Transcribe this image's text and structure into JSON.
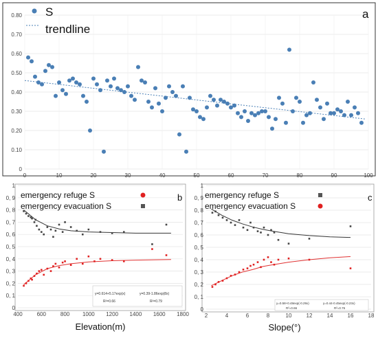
{
  "chart_data": [
    {
      "type": "scatter",
      "panel_label": "a",
      "legend": {
        "series": "S",
        "trend": "trendline"
      },
      "xlim": [
        0,
        100
      ],
      "ylim": [
        0,
        0.8
      ],
      "x_ticks": [
        "0",
        "10",
        "20",
        "30",
        "40",
        "50",
        "60",
        "70",
        "80",
        "90",
        "100"
      ],
      "y_ticks": [
        "0",
        "0.10",
        "0.20",
        "0.30",
        "0.40",
        "0.50",
        "0.60",
        "0.70",
        "0.80"
      ],
      "trend": {
        "x": [
          0,
          99
        ],
        "y": [
          0.46,
          0.26
        ]
      },
      "series": [
        {
          "name": "S",
          "x": [
            1,
            2,
            3,
            4,
            5,
            6,
            7,
            8,
            9,
            10,
            11,
            12,
            13,
            14,
            15,
            16,
            17,
            18,
            19,
            20,
            21,
            22,
            23,
            24,
            25,
            26,
            27,
            28,
            29,
            30,
            31,
            32,
            33,
            34,
            35,
            36,
            37,
            38,
            39,
            40,
            41,
            42,
            43,
            44,
            45,
            46,
            47,
            48,
            49,
            50,
            51,
            52,
            53,
            54,
            55,
            56,
            57,
            58,
            59,
            60,
            61,
            62,
            63,
            64,
            65,
            66,
            67,
            68,
            69,
            70,
            71,
            72,
            73,
            74,
            75,
            76,
            77,
            78,
            79,
            80,
            81,
            82,
            83,
            84,
            85,
            86,
            87,
            88,
            89,
            90,
            91,
            92,
            93,
            94,
            95,
            96,
            97,
            98
          ],
          "y": [
            0.58,
            0.56,
            0.48,
            0.45,
            0.44,
            0.51,
            0.54,
            0.53,
            0.38,
            0.45,
            0.41,
            0.39,
            0.46,
            0.47,
            0.45,
            0.44,
            0.38,
            0.35,
            0.2,
            0.47,
            0.44,
            0.41,
            0.09,
            0.46,
            0.43,
            0.47,
            0.42,
            0.41,
            0.4,
            0.43,
            0.38,
            0.36,
            0.53,
            0.46,
            0.45,
            0.35,
            0.32,
            0.42,
            0.34,
            0.3,
            0.37,
            0.43,
            0.4,
            0.38,
            0.18,
            0.43,
            0.09,
            0.37,
            0.31,
            0.3,
            0.27,
            0.26,
            0.32,
            0.38,
            0.36,
            0.33,
            0.36,
            0.35,
            0.34,
            0.32,
            0.33,
            0.29,
            0.27,
            0.3,
            0.25,
            0.29,
            0.28,
            0.29,
            0.3,
            0.3,
            0.27,
            0.21,
            0.26,
            0.37,
            0.34,
            0.24,
            0.62,
            0.3,
            0.37,
            0.35,
            0.24,
            0.28,
            0.29,
            0.45,
            0.36,
            0.32,
            0.26,
            0.34,
            0.29,
            0.29,
            0.31,
            0.3,
            0.28,
            0.35,
            0.28,
            0.32,
            0.29,
            0.24
          ]
        }
      ]
    },
    {
      "type": "scatter",
      "panel_label": "b",
      "xlabel": "Elevation(m)",
      "xlim": [
        400,
        1800
      ],
      "ylim": [
        0,
        1.0
      ],
      "x_ticks": [
        "400",
        "600",
        "800",
        "1000",
        "1200",
        "1400",
        "1600",
        "1800"
      ],
      "y_ticks": [
        "0",
        "0, 1",
        "0, 2",
        "0, 3",
        "0, 4",
        "0, 5",
        "0, 6",
        "0, 7",
        "0, 8",
        "0, 9",
        "1"
      ],
      "legend": {
        "refuge": "emergency refuge S",
        "evacuation": "emergency evacuation S"
      },
      "equations": [
        "y=0.614+5.17exp(x)",
        "y=0.39-1.86exp(8x)",
        "R²=0.66",
        "R²=0.79"
      ],
      "series": [
        {
          "name": "emergency evacuation S",
          "x": [
            450,
            470,
            490,
            510,
            520,
            540,
            550,
            560,
            580,
            600,
            620,
            650,
            680,
            700,
            720,
            750,
            780,
            800,
            850,
            900,
            950,
            1000,
            1100,
            1200,
            1300,
            1540,
            1660
          ],
          "y": [
            0.79,
            0.77,
            0.75,
            0.74,
            0.73,
            0.7,
            0.72,
            0.67,
            0.64,
            0.62,
            0.6,
            0.66,
            0.64,
            0.58,
            0.63,
            0.68,
            0.62,
            0.7,
            0.66,
            0.63,
            0.6,
            0.64,
            0.62,
            0.61,
            0.62,
            0.52,
            0.68
          ]
        },
        {
          "name": "emergency refuge S",
          "x": [
            450,
            470,
            490,
            510,
            520,
            540,
            560,
            580,
            600,
            620,
            650,
            680,
            700,
            720,
            750,
            780,
            800,
            850,
            900,
            950,
            1000,
            1050,
            1100,
            1200,
            1300,
            1540,
            1660
          ],
          "y": [
            0.18,
            0.2,
            0.22,
            0.24,
            0.23,
            0.26,
            0.28,
            0.3,
            0.31,
            0.27,
            0.32,
            0.3,
            0.34,
            0.36,
            0.33,
            0.37,
            0.38,
            0.35,
            0.4,
            0.36,
            0.42,
            0.38,
            0.4,
            0.39,
            0.38,
            0.48,
            0.43
          ]
        }
      ],
      "fits": [
        {
          "x": [
            450,
            550,
            650,
            750,
            850,
            1000,
            1200,
            1400,
            1700
          ],
          "y": [
            0.8,
            0.72,
            0.67,
            0.645,
            0.63,
            0.62,
            0.615,
            0.61,
            0.61
          ]
        },
        {
          "x": [
            450,
            550,
            650,
            750,
            850,
            1000,
            1200,
            1400,
            1700
          ],
          "y": [
            0.19,
            0.27,
            0.32,
            0.345,
            0.36,
            0.375,
            0.385,
            0.39,
            0.395
          ]
        }
      ]
    },
    {
      "type": "scatter",
      "panel_label": "c",
      "xlabel": "Slope(°)",
      "xlim": [
        2,
        18
      ],
      "ylim": [
        0,
        1.0
      ],
      "x_ticks": [
        "2",
        "4",
        "6",
        "8",
        "10",
        "12",
        "14",
        "16",
        "18"
      ],
      "y_ticks": [
        "0",
        "0, 1",
        "0, 2",
        "0, 3",
        "0, 4",
        "0, 5",
        "0, 6",
        "0, 7",
        "0, 8",
        "0, 9",
        "1"
      ],
      "legend": {
        "refuge": "emergency refuge S",
        "evacuation": "emergency evacuation S"
      },
      "equations": [
        "y=0.58+0.48exp(-0.29x)",
        "y=0.44-0.45exp(-0.23x)",
        "R²=0.66",
        "R²=0.76"
      ],
      "series": [
        {
          "name": "emergency refuge S",
          "x": [
            2.6,
            2.9,
            3.2,
            3.6,
            4.0,
            4.4,
            4.8,
            5.2,
            5.6,
            6.0,
            6.3,
            6.6,
            7.0,
            7.3,
            7.6,
            8.0,
            8.3,
            8.6,
            9.0,
            10.0,
            12.0,
            16.0
          ],
          "y": [
            0.78,
            0.79,
            0.76,
            0.74,
            0.72,
            0.7,
            0.68,
            0.72,
            0.66,
            0.64,
            0.7,
            0.66,
            0.63,
            0.62,
            0.66,
            0.6,
            0.64,
            0.62,
            0.56,
            0.53,
            0.57,
            0.67
          ]
        },
        {
          "name": "emergency evacuation S",
          "x": [
            2.6,
            2.9,
            3.2,
            3.6,
            4.0,
            4.4,
            4.8,
            5.2,
            5.6,
            6.0,
            6.3,
            6.6,
            7.0,
            7.3,
            7.6,
            8.0,
            8.3,
            8.6,
            9.0,
            10.0,
            12.0,
            16.0
          ],
          "y": [
            0.18,
            0.2,
            0.22,
            0.23,
            0.25,
            0.27,
            0.28,
            0.3,
            0.32,
            0.33,
            0.35,
            0.36,
            0.38,
            0.34,
            0.4,
            0.42,
            0.38,
            0.36,
            0.4,
            0.41,
            0.4,
            0.33
          ]
        }
      ],
      "fits": [
        {
          "x": [
            2.5,
            3.5,
            4.5,
            5.5,
            6.5,
            7.5,
            8.5,
            10,
            12,
            14,
            16
          ],
          "y": [
            0.81,
            0.76,
            0.72,
            0.69,
            0.665,
            0.645,
            0.63,
            0.61,
            0.595,
            0.585,
            0.58
          ]
        },
        {
          "x": [
            2.5,
            3.5,
            4.5,
            5.5,
            6.5,
            7.5,
            8.5,
            10,
            12,
            14,
            16
          ],
          "y": [
            0.19,
            0.23,
            0.27,
            0.3,
            0.32,
            0.345,
            0.36,
            0.38,
            0.4,
            0.415,
            0.425
          ]
        }
      ]
    }
  ]
}
